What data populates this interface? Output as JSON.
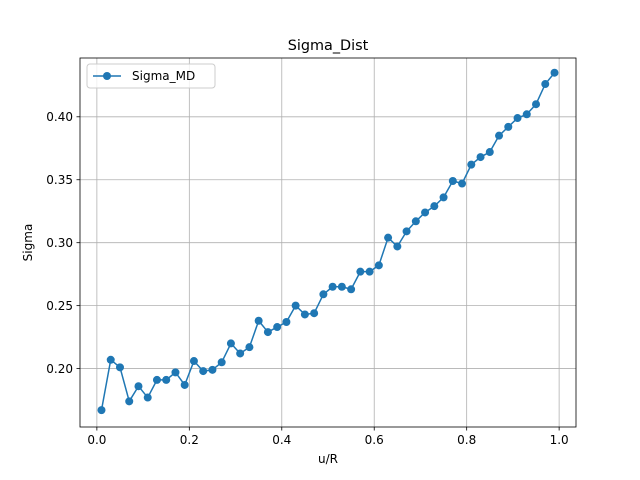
{
  "chart_data": {
    "type": "line",
    "title": "Sigma_Dist",
    "xlabel": "u/R",
    "ylabel": "Sigma",
    "xlim": [
      -0.0365,
      1.0365
    ],
    "ylim": [
      0.1536,
      0.4467
    ],
    "x_ticks": [
      0.0,
      0.2,
      0.4,
      0.6,
      0.8,
      1.0
    ],
    "x_tick_labels": [
      "0.0",
      "0.2",
      "0.4",
      "0.6",
      "0.8",
      "1.0"
    ],
    "y_ticks": [
      0.2,
      0.25,
      0.3,
      0.35,
      0.4
    ],
    "y_tick_labels": [
      "0.20",
      "0.25",
      "0.30",
      "0.35",
      "0.40"
    ],
    "grid": true,
    "legend_position": "top-left",
    "series": [
      {
        "name": "Sigma_MD",
        "color": "#1f77b4",
        "marker": "circle",
        "x": [
          0.01,
          0.03,
          0.05,
          0.07,
          0.09,
          0.11,
          0.13,
          0.15,
          0.17,
          0.19,
          0.21,
          0.23,
          0.25,
          0.27,
          0.29,
          0.31,
          0.33,
          0.35,
          0.37,
          0.39,
          0.41,
          0.43,
          0.45,
          0.47,
          0.49,
          0.51,
          0.53,
          0.55,
          0.57,
          0.59,
          0.61,
          0.63,
          0.65,
          0.67,
          0.69,
          0.71,
          0.73,
          0.75,
          0.77,
          0.79,
          0.81,
          0.83,
          0.85,
          0.87,
          0.89,
          0.91,
          0.93,
          0.95,
          0.97,
          0.99
        ],
        "y": [
          0.167,
          0.207,
          0.201,
          0.174,
          0.186,
          0.177,
          0.191,
          0.191,
          0.197,
          0.187,
          0.206,
          0.198,
          0.199,
          0.205,
          0.22,
          0.212,
          0.217,
          0.238,
          0.229,
          0.233,
          0.237,
          0.25,
          0.243,
          0.244,
          0.259,
          0.265,
          0.265,
          0.263,
          0.277,
          0.277,
          0.282,
          0.304,
          0.297,
          0.309,
          0.317,
          0.324,
          0.329,
          0.336,
          0.349,
          0.347,
          0.362,
          0.368,
          0.372,
          0.385,
          0.392,
          0.399,
          0.402,
          0.41,
          0.426,
          0.435
        ]
      }
    ]
  }
}
